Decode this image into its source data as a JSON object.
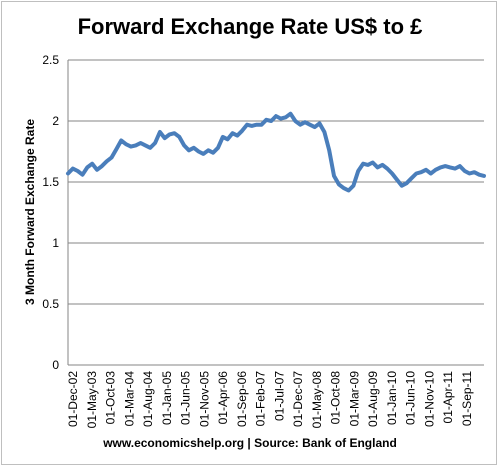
{
  "chart_data": {
    "type": "line",
    "title": "Forward Exchange Rate US$ to £",
    "ylabel": "3 Month Forward Exchange Rate",
    "xlabel": "",
    "source": "www.economicshelp.org | Source: Bank of England",
    "ylim": [
      0,
      2.5
    ],
    "yticks": [
      "0",
      "0.5",
      "1",
      "1.5",
      "2",
      "2.5"
    ],
    "grid": true,
    "legend": "none",
    "line_color": "#4a7ebb",
    "xticks": [
      "01-Dec-02",
      "01-May-03",
      "01-Oct-03",
      "01-Mar-04",
      "01-Aug-04",
      "01-Jan-05",
      "01-Jun-05",
      "01-Nov-05",
      "01-Apr-06",
      "01-Sep-06",
      "01-Feb-07",
      "01-Jul-07",
      "01-Dec-07",
      "01-May-08",
      "01-Oct-08",
      "01-Mar-09",
      "01-Aug-09",
      "01-Jan-10",
      "01-Jun-10",
      "01-Nov-10",
      "01-Apr-11",
      "01-Sep-11"
    ],
    "values": [
      1.57,
      1.61,
      1.59,
      1.56,
      1.62,
      1.65,
      1.6,
      1.63,
      1.67,
      1.7,
      1.77,
      1.84,
      1.81,
      1.79,
      1.8,
      1.82,
      1.8,
      1.78,
      1.82,
      1.91,
      1.86,
      1.89,
      1.9,
      1.87,
      1.8,
      1.76,
      1.78,
      1.75,
      1.73,
      1.76,
      1.74,
      1.78,
      1.87,
      1.85,
      1.9,
      1.88,
      1.92,
      1.97,
      1.96,
      1.97,
      1.97,
      2.01,
      2.0,
      2.04,
      2.02,
      2.03,
      2.06,
      2.0,
      1.97,
      1.99,
      1.97,
      1.95,
      1.98,
      1.91,
      1.76,
      1.55,
      1.48,
      1.45,
      1.43,
      1.47,
      1.59,
      1.65,
      1.64,
      1.66,
      1.62,
      1.64,
      1.61,
      1.57,
      1.52,
      1.47,
      1.49,
      1.53,
      1.57,
      1.58,
      1.6,
      1.57,
      1.6,
      1.62,
      1.63,
      1.62,
      1.61,
      1.63,
      1.59,
      1.57,
      1.58,
      1.56,
      1.55
    ]
  }
}
